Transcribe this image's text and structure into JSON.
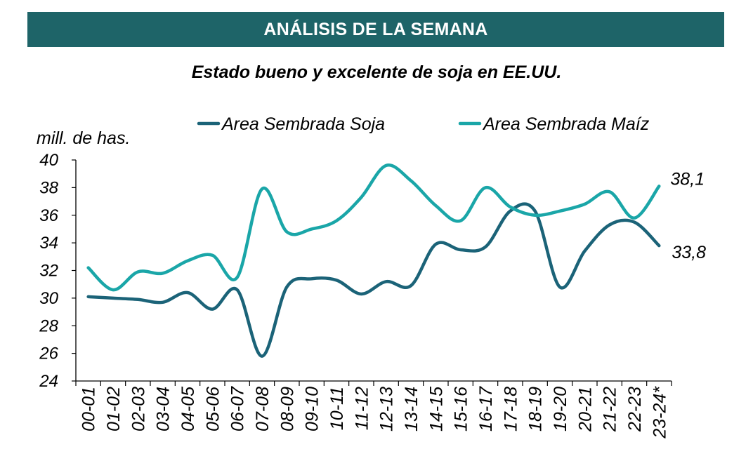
{
  "header": {
    "banner": "ANÁLISIS DE LA SEMANA"
  },
  "chart_data": {
    "type": "line",
    "title": "Estado bueno y excelente de soja en EE.UU.",
    "ylabel": "mill. de has.",
    "xlabel": "",
    "ylim": [
      24,
      40
    ],
    "yticks": [
      "24",
      "26",
      "28",
      "30",
      "32",
      "34",
      "36",
      "38",
      "40"
    ],
    "categories": [
      "00-01",
      "01-02",
      "02-03",
      "03-04",
      "04-05",
      "05-06",
      "06-07",
      "07-08",
      "08-09",
      "09-10",
      "10-11",
      "11-12",
      "12-13",
      "13-14",
      "14-15",
      "15-16",
      "16-17",
      "17-18",
      "18-19",
      "19-20",
      "20-21",
      "21-22",
      "22-23",
      "23-24*"
    ],
    "grid": false,
    "legend_position": "top",
    "series": [
      {
        "name": "Area Sembrada Soja",
        "color": "#1b6378",
        "values": [
          30.1,
          30.0,
          29.9,
          29.7,
          30.4,
          29.2,
          30.6,
          25.8,
          30.8,
          31.4,
          31.3,
          30.3,
          31.2,
          30.9,
          33.9,
          33.5,
          33.7,
          36.3,
          36.3,
          30.8,
          33.4,
          35.3,
          35.5,
          33.8
        ],
        "end_label": "33,8"
      },
      {
        "name": "Area Sembrada Maíz",
        "color": "#1aa6a8",
        "values": [
          32.2,
          30.6,
          31.9,
          31.8,
          32.7,
          33.1,
          31.5,
          37.9,
          34.8,
          35.0,
          35.6,
          37.3,
          39.6,
          38.5,
          36.7,
          35.6,
          38.0,
          36.6,
          36.0,
          36.3,
          36.8,
          37.7,
          35.8,
          38.1
        ],
        "end_label": "38,1"
      }
    ]
  }
}
